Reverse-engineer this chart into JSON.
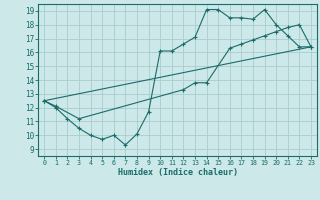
{
  "xlabel": "Humidex (Indice chaleur)",
  "xlim": [
    -0.5,
    23.5
  ],
  "ylim": [
    8.5,
    19.5
  ],
  "xticks": [
    0,
    1,
    2,
    3,
    4,
    5,
    6,
    7,
    8,
    9,
    10,
    11,
    12,
    13,
    14,
    15,
    16,
    17,
    18,
    19,
    20,
    21,
    22,
    23
  ],
  "yticks": [
    9,
    10,
    11,
    12,
    13,
    14,
    15,
    16,
    17,
    18,
    19
  ],
  "bg_color": "#cce8e8",
  "grid_color": "#aacccc",
  "line_color": "#1a6b6b",
  "line1_x": [
    0,
    1,
    2,
    3,
    4,
    5,
    6,
    7,
    8,
    9,
    10,
    11,
    12,
    13,
    14,
    15,
    16,
    17,
    18,
    19,
    20,
    21,
    22,
    23
  ],
  "line1_y": [
    12.5,
    12.0,
    11.2,
    10.5,
    10.0,
    9.7,
    10.0,
    9.3,
    10.1,
    11.7,
    16.1,
    16.1,
    16.6,
    17.1,
    19.1,
    19.1,
    18.5,
    18.5,
    18.4,
    19.1,
    18.0,
    17.2,
    16.4,
    16.4
  ],
  "line2_x": [
    0,
    1,
    3,
    12,
    13,
    14,
    16,
    17,
    18,
    19,
    20,
    21,
    22,
    23
  ],
  "line2_y": [
    12.5,
    12.1,
    11.2,
    13.3,
    13.8,
    13.8,
    16.3,
    16.6,
    16.9,
    17.2,
    17.5,
    17.8,
    18.0,
    16.4
  ],
  "line3_x": [
    0,
    23
  ],
  "line3_y": [
    12.5,
    16.4
  ]
}
